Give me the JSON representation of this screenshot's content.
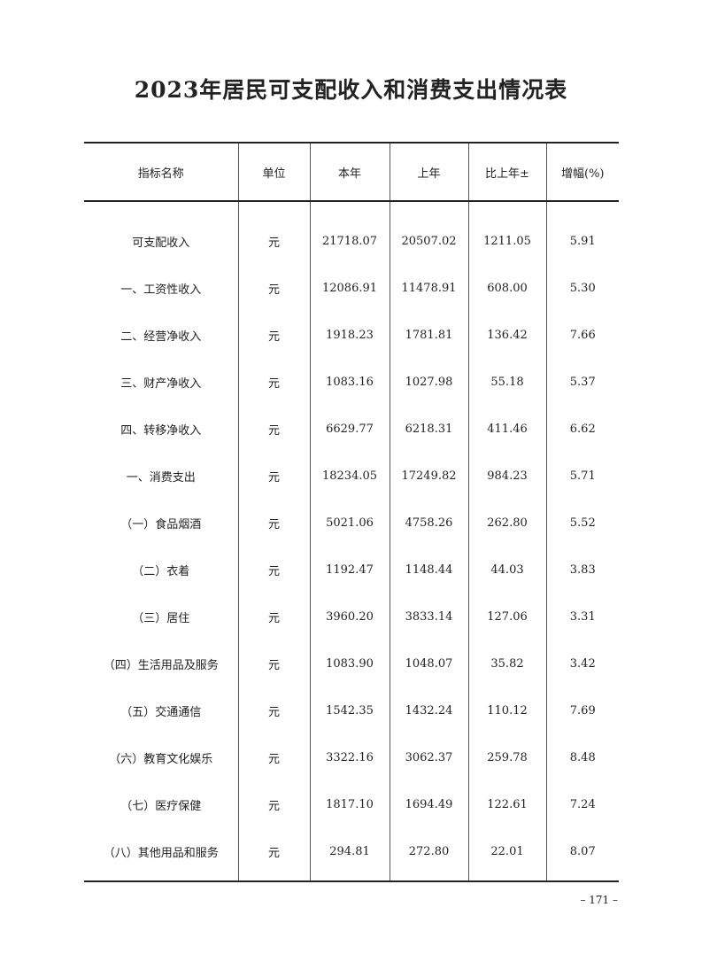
{
  "title": "2023年居民可支配收入和消费支出情况表",
  "headers": [
    "指标名称",
    "单位",
    "本年",
    "上年",
    "比上年±",
    "增幅(%)"
  ],
  "rows": [
    [
      "可支配收入",
      "元",
      "21718.07",
      "20507.02",
      "1211.05",
      "5.91"
    ],
    [
      "一、工资性收入",
      "元",
      "12086.91",
      "11478.91",
      "608.00",
      "5.30"
    ],
    [
      "二、经营净收入",
      "元",
      "1918.23",
      "1781.81",
      "136.42",
      "7.66"
    ],
    [
      "三、财产净收入",
      "元",
      "1083.16",
      "1027.98",
      "55.18",
      "5.37"
    ],
    [
      "四、转移净收入",
      "元",
      "6629.77",
      "6218.31",
      "411.46",
      "6.62"
    ],
    [
      "一、消费支出",
      "元",
      "18234.05",
      "17249.82",
      "984.23",
      "5.71"
    ],
    [
      "（一）食品烟酒",
      "元",
      "5021.06",
      "4758.26",
      "262.80",
      "5.52"
    ],
    [
      "（二）衣着",
      "元",
      "1192.47",
      "1148.44",
      "44.03",
      "3.83"
    ],
    [
      "（三）居住",
      "元",
      "3960.20",
      "3833.14",
      "127.06",
      "3.31"
    ],
    [
      "（四）生活用品及服务",
      "元",
      "1083.90",
      "1048.07",
      "35.82",
      "3.42"
    ],
    [
      "（五）交通通信",
      "元",
      "1542.35",
      "1432.24",
      "110.12",
      "7.69"
    ],
    [
      "（六）教育文化娱乐",
      "元",
      "3322.16",
      "3062.37",
      "259.78",
      "8.48"
    ],
    [
      "（七）医疗保健",
      "元",
      "1817.10",
      "1694.49",
      "122.61",
      "7.24"
    ],
    [
      "（八）其他用品和服务",
      "元",
      "294.81",
      "272.80",
      "22.01",
      "8.07"
    ]
  ],
  "page_number": "– 171 –"
}
